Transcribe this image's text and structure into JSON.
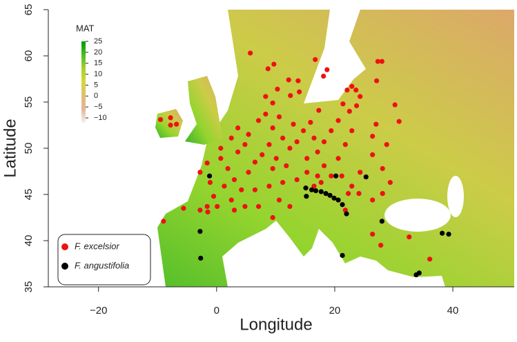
{
  "chart_data": {
    "type": "scatter",
    "x_label": "Longitude",
    "y_label": "Latitude",
    "xlim": [
      -28.5,
      50.4
    ],
    "ylim": [
      35,
      65
    ],
    "xticks": [
      {
        "value": -20,
        "label": "−20"
      },
      0,
      20,
      40
    ],
    "yticks": [
      35,
      40,
      45,
      50,
      55,
      60,
      65
    ],
    "legend": "bottom-left",
    "colorbar": {
      "title": "MAT",
      "lim": [
        -12.2,
        25
      ],
      "ticks": [
        25,
        20,
        15,
        10,
        5,
        0,
        {
          "value": -5,
          "label": "−5"
        },
        {
          "value": -10,
          "label": "−10"
        }
      ],
      "colors": [
        "#f4f2f2",
        "#e6b49a",
        "#dcc070",
        "#d4d83a",
        "#a6d22c",
        "#4cbc24",
        "#009a00"
      ]
    },
    "series": [
      {
        "name": "F. excelsior",
        "color": "#ee1111",
        "x": [
          -9.5,
          -7.8,
          -6.8,
          -7.8,
          -9,
          -5.6,
          -2.8,
          -1.5,
          5.7,
          8.7,
          9.7,
          16.7,
          13.8,
          12.2,
          10.3,
          18.1,
          18.7,
          22.1,
          22.9,
          23.6,
          24.3,
          27.3,
          28,
          27.1,
          23.7,
          17.3,
          21.4,
          22.5,
          14,
          12.5,
          15.9,
          20.6,
          19.4,
          22.9,
          30.2,
          30.9,
          27,
          26.4,
          28.8,
          26.4,
          28.1,
          29.4,
          28.1,
          26.4,
          24.3,
          22.9,
          21.2,
          24.1,
          0.7,
          1.9,
          3.6,
          4.8,
          3,
          1.3,
          -0.5,
          -1.6,
          2.5,
          4.2,
          5.4,
          6.5,
          0.7,
          2.5,
          3.6,
          5.4,
          -1.6,
          -2.8,
          -1.1,
          0.1,
          7.1,
          8.3,
          9.5,
          10.6,
          11.2,
          12.4,
          8.9,
          7.7,
          10.1,
          11.8,
          13.6,
          14.7,
          13,
          9.5,
          8.3,
          6.5,
          8.9,
          11.2,
          7.1,
          9.5,
          10.6,
          13.6,
          9.5,
          4.8,
          3,
          12.4,
          16.5,
          15.3,
          17.1,
          18.2,
          19.4,
          17.1,
          20.6,
          16.5,
          18.2,
          21.8,
          17.7,
          15.3,
          26.4,
          27.8,
          32.6,
          36.1,
          21.8,
          22.3
        ],
        "values": [
          53.1,
          53.3,
          52.6,
          52.5,
          42.1,
          43.5,
          43.3,
          43.1,
          60.3,
          58.6,
          59.1,
          59.6,
          57.3,
          57.4,
          56.4,
          57.8,
          58.5,
          56.3,
          56.7,
          56.3,
          55.6,
          59.4,
          59.4,
          57.3,
          54.6,
          54.1,
          54.8,
          54,
          56.1,
          55.7,
          52.8,
          53,
          51.9,
          51.9,
          54.7,
          52.9,
          52.6,
          51.3,
          50.4,
          49.3,
          47.8,
          46.3,
          45.1,
          44.4,
          47.4,
          45.9,
          47,
          45.1,
          48.9,
          47.8,
          49.6,
          50.4,
          46.6,
          45.9,
          44.8,
          43.7,
          44.4,
          45.5,
          47.4,
          48.5,
          50,
          51.1,
          52.2,
          51.5,
          48.4,
          47.4,
          46.3,
          43.7,
          53,
          53.7,
          52.2,
          53.4,
          51.1,
          50,
          50.4,
          49.3,
          48.9,
          48.1,
          50.7,
          51.9,
          52.6,
          54.9,
          55.6,
          45.5,
          45.9,
          46.3,
          43.7,
          42.5,
          44.4,
          46.6,
          47.8,
          43.7,
          43.3,
          43.7,
          45.9,
          48.9,
          49.6,
          48.1,
          47,
          47,
          48.9,
          51.1,
          50.7,
          50.4,
          46.3,
          47.4,
          40.7,
          39.5,
          40.4,
          38,
          43.3,
          45.1
        ]
      },
      {
        "name": "F. angustifolia",
        "color": "#000000",
        "x": [
          -1.2,
          -2.8,
          -2.7,
          15.1,
          16.1,
          16.8,
          17.7,
          18.5,
          19.2,
          19.9,
          20.6,
          21.3,
          22,
          20.2,
          25.3,
          15.2,
          21.3,
          28,
          38.2,
          39.3,
          33.8,
          34.3
        ],
        "values": [
          47,
          41,
          38.1,
          45.7,
          45.5,
          45.4,
          45.3,
          45.1,
          44.9,
          44.6,
          44.4,
          43.9,
          42.9,
          47,
          46.9,
          44.8,
          38.4,
          42.1,
          40.8,
          40.7,
          36.3,
          36.5
        ]
      }
    ]
  }
}
